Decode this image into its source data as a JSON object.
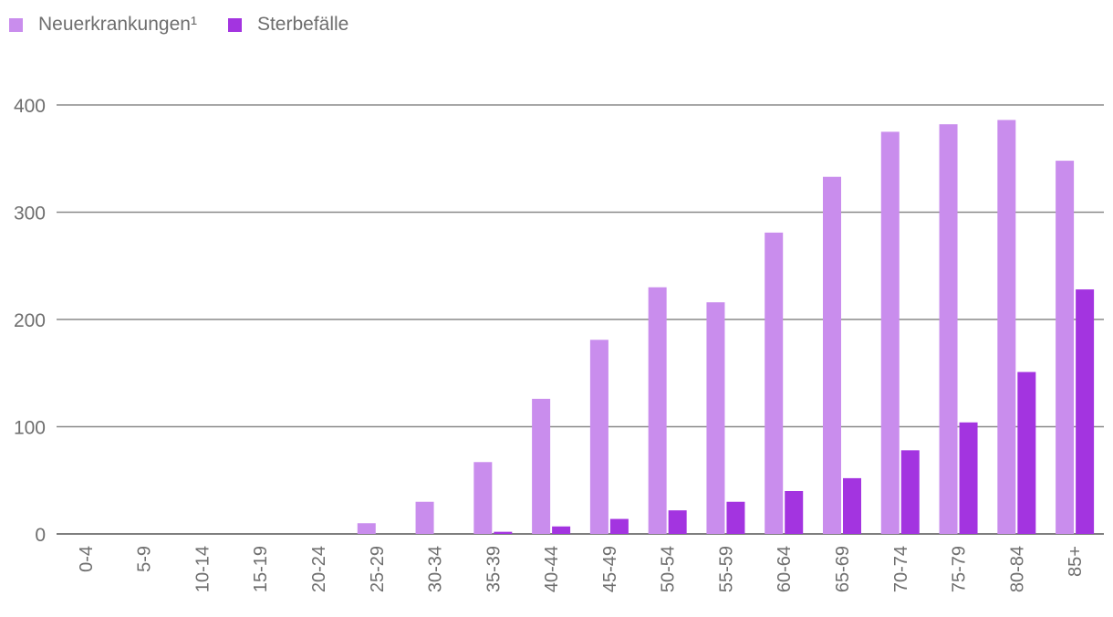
{
  "chart_data": {
    "type": "bar",
    "title": "",
    "xlabel": "",
    "ylabel": "",
    "ylim": [
      0,
      400
    ],
    "yticks": [
      0,
      100,
      200,
      300,
      400
    ],
    "grid": true,
    "legend_position": "top-left",
    "categories": [
      "0-4",
      "5-9",
      "10-14",
      "15-19",
      "20-24",
      "25-29",
      "30-34",
      "35-39",
      "40-44",
      "45-49",
      "50-54",
      "55-59",
      "60-64",
      "65-69",
      "70-74",
      "75-79",
      "80-84",
      "85+"
    ],
    "series": [
      {
        "name": "Neuerkrankungen¹",
        "color": "#c98ded",
        "values": [
          0,
          0,
          0,
          0,
          0,
          10,
          30,
          67,
          126,
          181,
          230,
          216,
          281,
          333,
          375,
          382,
          386,
          348
        ]
      },
      {
        "name": "Sterbefälle",
        "color": "#a334e0",
        "values": [
          0,
          0,
          0,
          0,
          0,
          0,
          0,
          2,
          7,
          14,
          22,
          30,
          40,
          52,
          78,
          104,
          151,
          228
        ]
      }
    ]
  }
}
